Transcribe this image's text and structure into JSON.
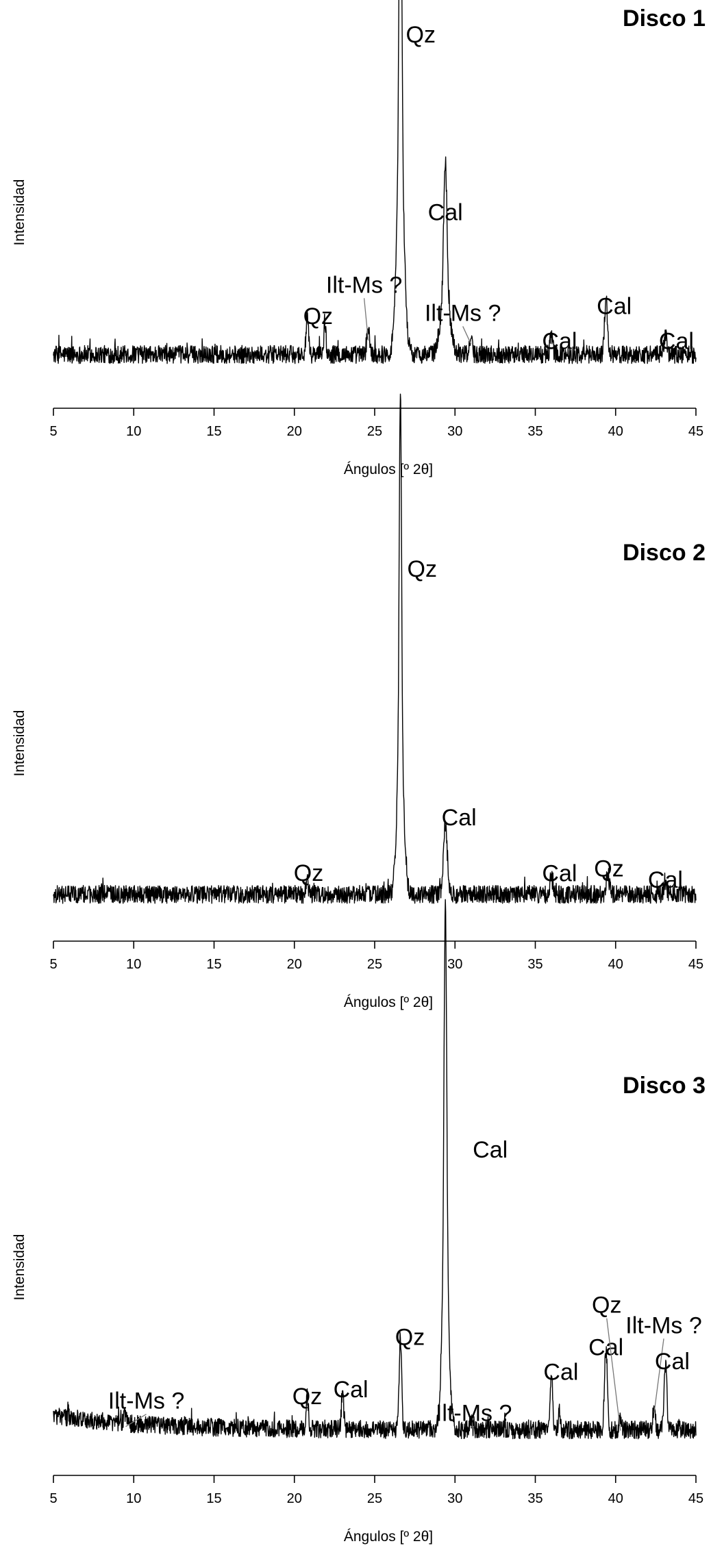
{
  "chart_data": [
    {
      "type": "line",
      "title": "Disco 1",
      "xlabel": "Ángulos [º 2θ]",
      "ylabel": "Intensidad",
      "xlim": [
        5,
        45
      ],
      "ylim": [
        0,
        100
      ],
      "xticks": [
        5,
        10,
        15,
        20,
        25,
        30,
        35,
        40,
        45
      ],
      "grid": false,
      "baseline": 6,
      "peaks": [
        {
          "x": 20.8,
          "y": 11,
          "w": 0.07
        },
        {
          "x": 21.9,
          "y": 10,
          "w": 0.06
        },
        {
          "x": 24.6,
          "y": 8,
          "w": 0.08
        },
        {
          "x": 26.6,
          "y": 100,
          "w": 0.08
        },
        {
          "x": 26.6,
          "y": 60,
          "w": 0.22
        },
        {
          "x": 29.4,
          "y": 38,
          "w": 0.1
        },
        {
          "x": 29.4,
          "y": 18,
          "w": 0.28
        },
        {
          "x": 31.0,
          "y": 6,
          "w": 0.07
        },
        {
          "x": 36.0,
          "y": 6,
          "w": 0.08
        },
        {
          "x": 39.4,
          "y": 16,
          "w": 0.09
        },
        {
          "x": 43.1,
          "y": 6,
          "w": 0.09
        }
      ],
      "annotations": [
        {
          "label": "Qz",
          "x": 26.6,
          "y": 100
        },
        {
          "label": "Cal",
          "x": 29.4,
          "y": 43
        },
        {
          "label": "Ilt-Ms ?",
          "x": 24.6,
          "y": 8
        },
        {
          "label": "Qz",
          "x": 21.9,
          "y": 10
        },
        {
          "label": "Ilt-Ms ?",
          "x": 31.0,
          "y": 7
        },
        {
          "label": "Cal",
          "x": 36.0,
          "y": 6
        },
        {
          "label": "Cal",
          "x": 39.4,
          "y": 16
        },
        {
          "label": "Cal",
          "x": 43.1,
          "y": 6
        }
      ]
    },
    {
      "type": "line",
      "title": "Disco 2",
      "xlabel": "Ángulos [º 2θ]",
      "ylabel": "Intensidad",
      "xlim": [
        5,
        45
      ],
      "ylim": [
        0,
        100
      ],
      "xticks": [
        5,
        10,
        15,
        20,
        25,
        30,
        35,
        40,
        45
      ],
      "grid": false,
      "baseline": 4,
      "peaks": [
        {
          "x": 20.8,
          "y": 4,
          "w": 0.07
        },
        {
          "x": 26.6,
          "y": 100,
          "w": 0.07
        },
        {
          "x": 26.6,
          "y": 45,
          "w": 0.2
        },
        {
          "x": 29.4,
          "y": 20,
          "w": 0.12
        },
        {
          "x": 36.0,
          "y": 5,
          "w": 0.09
        },
        {
          "x": 39.5,
          "y": 6,
          "w": 0.1
        },
        {
          "x": 43.1,
          "y": 4,
          "w": 0.09
        }
      ],
      "annotations": [
        {
          "label": "Qz",
          "x": 26.6,
          "y": 100
        },
        {
          "label": "Cal",
          "x": 29.4,
          "y": 20
        },
        {
          "label": "Qz",
          "x": 20.8,
          "y": 4
        },
        {
          "label": "Cal",
          "x": 36.0,
          "y": 5
        },
        {
          "label": "Qz",
          "x": 39.5,
          "y": 6
        },
        {
          "label": "Cal",
          "x": 43.1,
          "y": 4
        }
      ]
    },
    {
      "type": "line",
      "title": "Disco 3",
      "xlabel": "Ángulos [º 2θ]",
      "ylabel": "Intensidad",
      "xlim": [
        5,
        45
      ],
      "ylim": [
        0,
        100
      ],
      "xticks": [
        5,
        10,
        15,
        20,
        25,
        30,
        35,
        40,
        45
      ],
      "grid": false,
      "baseline": 4,
      "peaks": [
        {
          "x": 9.5,
          "y": 3,
          "w": 0.1
        },
        {
          "x": 20.8,
          "y": 9,
          "w": 0.07
        },
        {
          "x": 23.0,
          "y": 11,
          "w": 0.07
        },
        {
          "x": 26.6,
          "y": 26,
          "w": 0.08
        },
        {
          "x": 29.4,
          "y": 100,
          "w": 0.08
        },
        {
          "x": 29.4,
          "y": 50,
          "w": 0.2
        },
        {
          "x": 31.0,
          "y": 3,
          "w": 0.07
        },
        {
          "x": 36.0,
          "y": 16,
          "w": 0.08
        },
        {
          "x": 36.5,
          "y": 6,
          "w": 0.06
        },
        {
          "x": 39.4,
          "y": 23,
          "w": 0.09
        },
        {
          "x": 40.3,
          "y": 3,
          "w": 0.07
        },
        {
          "x": 42.4,
          "y": 7,
          "w": 0.07
        },
        {
          "x": 43.1,
          "y": 19,
          "w": 0.09
        }
      ],
      "annotations": [
        {
          "label": "Cal",
          "x": 29.4,
          "y": 100
        },
        {
          "label": "Qz",
          "x": 26.6,
          "y": 26
        },
        {
          "label": "Cal",
          "x": 23.0,
          "y": 11
        },
        {
          "label": "Qz",
          "x": 20.8,
          "y": 9
        },
        {
          "label": "Ilt-Ms ?",
          "x": 9.5,
          "y": 3
        },
        {
          "label": "Ilt-Ms ?",
          "x": 31.0,
          "y": 3
        },
        {
          "label": "Cal",
          "x": 36.0,
          "y": 16
        },
        {
          "label": "Cal",
          "x": 39.4,
          "y": 23
        },
        {
          "label": "Qz",
          "x": 40.3,
          "y": 3
        },
        {
          "label": "Ilt-Ms ?",
          "x": 42.4,
          "y": 7
        },
        {
          "label": "Cal",
          "x": 43.1,
          "y": 19
        }
      ]
    }
  ]
}
